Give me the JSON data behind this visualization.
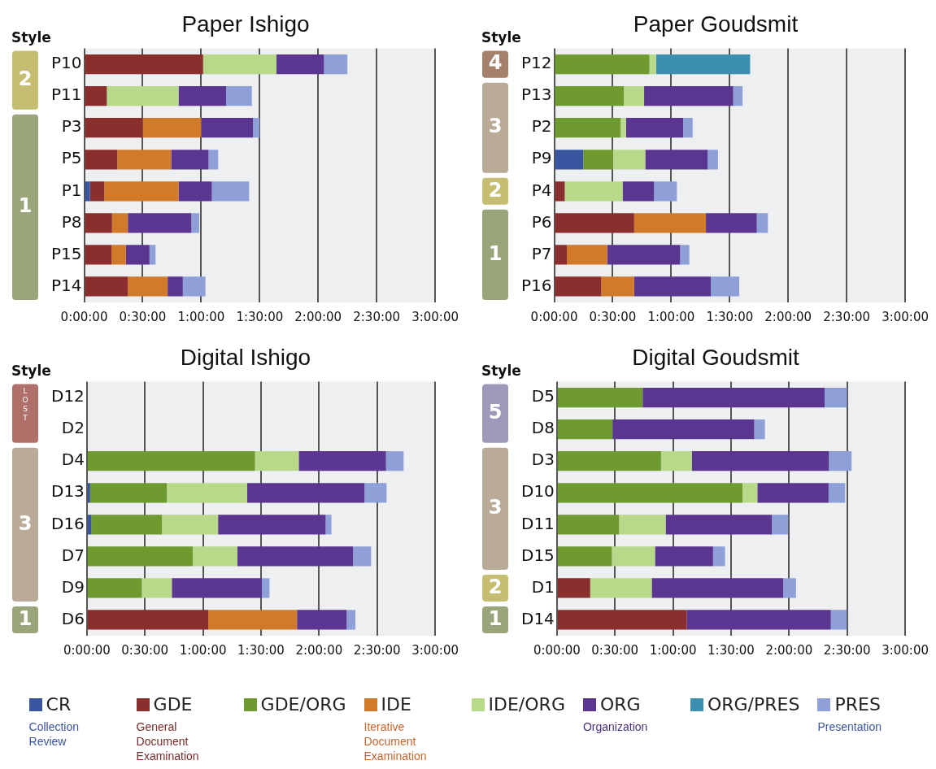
{
  "chart_data": [
    {
      "type": "bar",
      "orientation": "horizontal",
      "stacked": true,
      "title": "Paper Ishigo",
      "categories": [
        "P10",
        "P11",
        "P3",
        "P5",
        "P1",
        "P8",
        "P15",
        "P14"
      ],
      "series": [
        {
          "name": "CR",
          "color": "#3a55a0",
          "values": [
            0,
            0,
            0,
            0,
            3,
            0,
            0,
            0
          ]
        },
        {
          "name": "GDE",
          "color": "#8b2e2e",
          "values": [
            61,
            11.6,
            30,
            17,
            7.3,
            14.3,
            14,
            22.4
          ]
        },
        {
          "name": "GDE/ORG",
          "color": "#6f9a30",
          "values": [
            0,
            0,
            0,
            0,
            0,
            0,
            0,
            0
          ]
        },
        {
          "name": "IDE",
          "color": "#d07a2a",
          "values": [
            0,
            0,
            30,
            27.6,
            38.1,
            8.1,
            7.4,
            20.4
          ]
        },
        {
          "name": "IDE/ORG",
          "color": "#b8d88a",
          "values": [
            37.6,
            36.8,
            0,
            0,
            0,
            0,
            0,
            0
          ]
        },
        {
          "name": "ORG",
          "color": "#5a3690",
          "values": [
            24.4,
            24.4,
            26.6,
            19.2,
            17.1,
            32.6,
            12.1,
            7.8
          ]
        },
        {
          "name": "ORG/PRES",
          "color": "#3c8fb0",
          "values": [
            0,
            0,
            0,
            0,
            0,
            0,
            0,
            0
          ]
        },
        {
          "name": "PRES",
          "color": "#8fa0d8",
          "values": [
            12,
            13.2,
            3.3,
            4.9,
            19.1,
            4,
            3.1,
            11.6
          ]
        }
      ],
      "xlim": [
        0,
        180
      ],
      "xticks": [
        {
          "value": 0,
          "label": "0:00:00"
        },
        {
          "value": 30,
          "label": "0:30:00"
        },
        {
          "value": 60,
          "label": "1:00:00"
        },
        {
          "value": 90,
          "label": "1:30:00"
        },
        {
          "value": 120,
          "label": "2:00:00"
        },
        {
          "value": 150,
          "label": "2:30:00"
        },
        {
          "value": 180,
          "label": "3:00:00"
        }
      ],
      "grid": "x",
      "legend": "bottom",
      "annotations": [
        "Style",
        "2",
        "1",
        "Collection Review",
        "General Document Examination",
        "Iterative Document Examination",
        "Organization",
        "Presentation"
      ]
    },
    {
      "type": "bar",
      "orientation": "horizontal",
      "stacked": true,
      "title": "Paper Goudsmit",
      "categories": [
        "P12",
        "P13",
        "P2",
        "P9",
        "P4",
        "P6",
        "P7",
        "P16"
      ],
      "series": [
        {
          "color": "#3a55a0",
          "values": [
            0,
            0,
            0,
            14.9,
            0,
            0,
            0,
            0
          ]
        },
        {
          "color": "#8b2e2e",
          "values": [
            0,
            0,
            0,
            0,
            5.4,
            41,
            6.5,
            24.1
          ]
        },
        {
          "color": "#6f9a30",
          "values": [
            48.8,
            35.7,
            34,
            15.2,
            0,
            0,
            0,
            0
          ]
        },
        {
          "color": "#d07a2a",
          "values": [
            0,
            0,
            0,
            0,
            0,
            36.8,
            20.7,
            16.9
          ]
        },
        {
          "color": "#b8d88a",
          "values": [
            3.5,
            10.4,
            2.8,
            16.6,
            29.7,
            0,
            0,
            0
          ]
        },
        {
          "color": "#5a3690",
          "values": [
            0,
            45.7,
            29.3,
            32,
            16.1,
            26.1,
            37.4,
            39.3
          ]
        },
        {
          "color": "#3c8fb0",
          "values": [
            48.2,
            0,
            0,
            0,
            0,
            0,
            0,
            0
          ]
        },
        {
          "color": "#8fa0d8",
          "values": [
            0,
            4.8,
            4.9,
            5.3,
            11.7,
            5.7,
            4.7,
            14.6
          ]
        }
      ],
      "xlim": [
        0,
        180
      ],
      "xticks": [
        {
          "value": 0,
          "label": "0:00:00"
        },
        {
          "value": 30,
          "label": "0:30:00"
        },
        {
          "value": 60,
          "label": "1:00:00"
        },
        {
          "value": 90,
          "label": "1:30:00"
        },
        {
          "value": 120,
          "label": "2:00:00"
        },
        {
          "value": 150,
          "label": "2:30:00"
        },
        {
          "value": 180,
          "label": "3:00:00"
        }
      ],
      "grid": "x",
      "annotations": [
        "Style",
        "4",
        "3",
        "2",
        "1"
      ]
    },
    {
      "type": "bar",
      "orientation": "horizontal",
      "stacked": true,
      "title": "Digital Ishigo",
      "categories": [
        "D12",
        "D2",
        "D4",
        "D13",
        "D16",
        "D7",
        "D9",
        "D6"
      ],
      "series": [
        {
          "color": "#3a55a0",
          "values": [
            null,
            null,
            0,
            1.7,
            2.2,
            0,
            0,
            0
          ]
        },
        {
          "color": "#8b2e2e",
          "values": [
            null,
            null,
            0,
            0,
            0,
            0,
            0,
            62.7
          ]
        },
        {
          "color": "#6f9a30",
          "values": [
            null,
            null,
            86.9,
            39.6,
            36.6,
            54.7,
            28.4,
            0
          ]
        },
        {
          "color": "#d07a2a",
          "values": [
            null,
            null,
            0,
            0,
            0,
            0,
            0,
            45.9
          ]
        },
        {
          "color": "#b8d88a",
          "values": [
            null,
            null,
            22.6,
            41.5,
            29,
            23.1,
            15.5,
            0
          ]
        },
        {
          "color": "#5a3690",
          "values": [
            null,
            null,
            45.1,
            60.7,
            55.6,
            59.8,
            46.5,
            25.7
          ]
        },
        {
          "color": "#3c8fb0",
          "values": [
            null,
            null,
            0,
            0,
            0,
            0,
            0,
            0
          ]
        },
        {
          "color": "#8fa0d8",
          "values": [
            null,
            null,
            9.1,
            11.4,
            3,
            9.3,
            4,
            4.5
          ]
        }
      ],
      "xlim": [
        0,
        180
      ],
      "xticks": [
        {
          "value": 0,
          "label": "0:00:00"
        },
        {
          "value": 30,
          "label": "0:30:00"
        },
        {
          "value": 60,
          "label": "1:00:00"
        },
        {
          "value": 90,
          "label": "1:30:00"
        },
        {
          "value": 120,
          "label": "2:00:00"
        },
        {
          "value": 150,
          "label": "2:30:00"
        },
        {
          "value": 180,
          "label": "3:00:00"
        }
      ],
      "grid": "x",
      "annotations": [
        "Style",
        "LOST",
        "3",
        "1"
      ]
    },
    {
      "type": "bar",
      "orientation": "horizontal",
      "stacked": true,
      "title": "Digital Goudsmit",
      "categories": [
        "D5",
        "D8",
        "D3",
        "D10",
        "D11",
        "D15",
        "D1",
        "D14"
      ],
      "series": [
        {
          "color": "#3a55a0",
          "values": [
            0,
            0,
            0,
            0,
            0,
            0,
            0,
            0
          ]
        },
        {
          "color": "#8b2e2e",
          "values": [
            0,
            0,
            0,
            0,
            0,
            0,
            17.2,
            67.1
          ]
        },
        {
          "color": "#6f9a30",
          "values": [
            44.3,
            28.7,
            53.8,
            95.9,
            32.1,
            28.4,
            0,
            0
          ]
        },
        {
          "color": "#d07a2a",
          "values": [
            0,
            0,
            0,
            0,
            0,
            0,
            0,
            0
          ]
        },
        {
          "color": "#b8d88a",
          "values": [
            0,
            0,
            15.9,
            7.7,
            24.1,
            22.3,
            31.8,
            0
          ]
        },
        {
          "color": "#5a3690",
          "values": [
            94.1,
            73.3,
            70.9,
            36.8,
            54.9,
            30,
            68,
            74.5
          ]
        },
        {
          "color": "#3c8fb0",
          "values": [
            0,
            0,
            0,
            0,
            0,
            0,
            0,
            0
          ]
        },
        {
          "color": "#8fa0d8",
          "values": [
            11.5,
            5.5,
            11.7,
            8.6,
            8.4,
            6.2,
            6.6,
            8.2
          ]
        }
      ],
      "xlim": [
        0,
        180
      ],
      "xticks": [
        {
          "value": 0,
          "label": "0:00:00"
        },
        {
          "value": 30,
          "label": "0:30:00"
        },
        {
          "value": 60,
          "label": "1:00:00"
        },
        {
          "value": 90,
          "label": "1:30:00"
        },
        {
          "value": 120,
          "label": "2:00:00"
        },
        {
          "value": 150,
          "label": "2:30:00"
        },
        {
          "value": 180,
          "label": "3:00:00"
        }
      ],
      "grid": "x",
      "annotations": [
        "Style",
        "5",
        "3",
        "2",
        "1"
      ]
    }
  ]
}
